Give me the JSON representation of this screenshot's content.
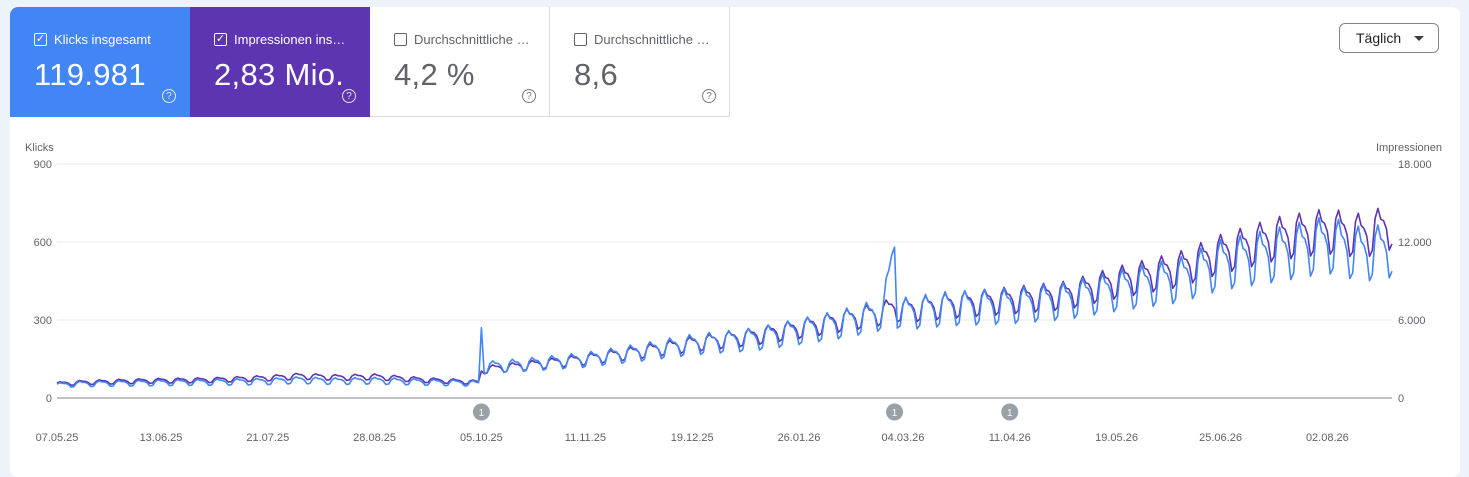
{
  "metrics": [
    {
      "label": "Klicks insgesamt",
      "value": "119.981",
      "checked": true
    },
    {
      "label": "Impressionen ins…",
      "value": "2,83 Mio.",
      "checked": true
    },
    {
      "label": "Durchschnittliche …",
      "value": "4,2 %",
      "checked": false
    },
    {
      "label": "Durchschnittliche …",
      "value": "8,6",
      "checked": false
    }
  ],
  "checkmark": "✓",
  "help_glyph": "?",
  "dropdown": {
    "label": "Täglich"
  },
  "colors": {
    "clicks": "#4285f4",
    "impressions": "#5e35b1",
    "grid": "#e8eaed",
    "axis": "#5f6368"
  },
  "chart_data": {
    "type": "line",
    "x_start": "07.05.25",
    "x_tick_labels": [
      "07.05.25",
      "13.06.25",
      "21.07.25",
      "28.08.25",
      "05.10.25",
      "11.11.25",
      "19.12.25",
      "26.01.26",
      "04.03.26",
      "11.04.26",
      "19.05.26",
      "25.06.26",
      "02.08.26"
    ],
    "y_left": {
      "label": "Klicks",
      "ticks": [
        "0",
        "300",
        "600",
        "900"
      ],
      "range": [
        0,
        900
      ]
    },
    "y_right": {
      "label": "Impressionen",
      "ticks": [
        "0",
        "6.000",
        "12.000",
        "18.000"
      ],
      "range": [
        0,
        18000
      ]
    },
    "annotations": [
      {
        "date": "05.10.25",
        "label": "1"
      },
      {
        "date": "01.03.26",
        "label": "1"
      },
      {
        "date": "11.04.26",
        "label": "1"
      }
    ],
    "legend": "none",
    "grid": true,
    "series": [
      {
        "name": "Klicks insgesamt",
        "axis": "left",
        "points": [
          [
            "07.05.25",
            50
          ],
          [
            "15.05.25",
            55
          ],
          [
            "01.06.25",
            58
          ],
          [
            "13.06.25",
            60
          ],
          [
            "01.07.25",
            62
          ],
          [
            "21.07.25",
            65
          ],
          [
            "01.08.25",
            70
          ],
          [
            "15.08.25",
            66
          ],
          [
            "28.08.25",
            68
          ],
          [
            "15.09.25",
            62
          ],
          [
            "01.10.25",
            58
          ],
          [
            "04.10.25",
            55
          ],
          [
            "05.10.25",
            270
          ],
          [
            "06.10.25",
            120
          ],
          [
            "20.10.25",
            130
          ],
          [
            "11.11.25",
            150
          ],
          [
            "01.12.25",
            180
          ],
          [
            "19.12.25",
            210
          ],
          [
            "10.01.26",
            230
          ],
          [
            "26.01.26",
            260
          ],
          [
            "10.02.26",
            290
          ],
          [
            "25.02.26",
            330
          ],
          [
            "01.03.26",
            580
          ],
          [
            "02.03.26",
            340
          ],
          [
            "04.03.26",
            330
          ],
          [
            "20.03.26",
            350
          ],
          [
            "11.04.26",
            360
          ],
          [
            "01.05.26",
            380
          ],
          [
            "19.05.26",
            420
          ],
          [
            "10.06.26",
            460
          ],
          [
            "25.06.26",
            520
          ],
          [
            "15.07.26",
            560
          ],
          [
            "02.08.26",
            600
          ],
          [
            "15.08.26",
            560
          ],
          [
            "25.08.26",
            580
          ]
        ]
      },
      {
        "name": "Impressionen insgesamt",
        "axis": "right",
        "points": [
          [
            "07.05.25",
            1100
          ],
          [
            "15.05.25",
            1200
          ],
          [
            "01.06.25",
            1300
          ],
          [
            "13.06.25",
            1350
          ],
          [
            "01.07.25",
            1400
          ],
          [
            "21.07.25",
            1550
          ],
          [
            "01.08.25",
            1700
          ],
          [
            "15.08.25",
            1600
          ],
          [
            "28.08.25",
            1650
          ],
          [
            "15.09.25",
            1400
          ],
          [
            "01.10.25",
            1250
          ],
          [
            "04.10.25",
            1200
          ],
          [
            "05.10.25",
            2100
          ],
          [
            "06.10.25",
            2200
          ],
          [
            "20.10.25",
            2500
          ],
          [
            "11.11.25",
            3000
          ],
          [
            "01.12.25",
            3600
          ],
          [
            "19.12.25",
            4200
          ],
          [
            "10.01.26",
            4800
          ],
          [
            "26.01.26",
            5400
          ],
          [
            "10.02.26",
            6000
          ],
          [
            "25.02.26",
            6600
          ],
          [
            "01.03.26",
            7000
          ],
          [
            "02.03.26",
            6900
          ],
          [
            "04.03.26",
            6800
          ],
          [
            "20.03.26",
            7200
          ],
          [
            "11.04.26",
            7600
          ],
          [
            "01.05.26",
            8000
          ],
          [
            "19.05.26",
            9000
          ],
          [
            "10.06.26",
            10000
          ],
          [
            "25.06.26",
            11200
          ],
          [
            "15.07.26",
            12400
          ],
          [
            "02.08.26",
            13000
          ],
          [
            "15.08.26",
            12600
          ],
          [
            "25.08.26",
            13400
          ]
        ]
      }
    ]
  }
}
